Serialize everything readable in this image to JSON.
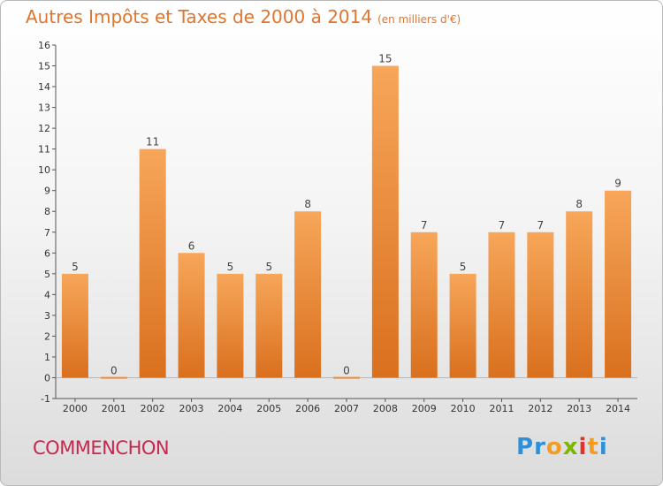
{
  "title": "Autres Impôts et Taxes de 2000 à 2014",
  "subtitle": "(en milliers d'€)",
  "commune": "COMMENCHON",
  "logo": {
    "letters": [
      "P",
      "r",
      "o",
      "x",
      "i",
      "t",
      "i"
    ],
    "colors": [
      "#2f8fd8",
      "#2f8fd8",
      "#f39c1f",
      "#7ab800",
      "#e2322a",
      "#f39c1f",
      "#2f8fd8"
    ]
  },
  "colors": {
    "bar_light": "#f7a65a",
    "bar_dark": "#d9701e",
    "title": "#e0752d",
    "commune": "#c9264e"
  },
  "chart_data": {
    "type": "bar",
    "title": "Autres Impôts et Taxes de 2000 à 2014",
    "subtitle": "(en milliers d'€)",
    "categories": [
      "2000",
      "2001",
      "2002",
      "2003",
      "2004",
      "2005",
      "2006",
      "2007",
      "2008",
      "2009",
      "2010",
      "2011",
      "2012",
      "2013",
      "2014"
    ],
    "values": [
      5,
      0,
      11,
      6,
      5,
      5,
      8,
      0,
      15,
      7,
      5,
      7,
      7,
      8,
      9
    ],
    "ylim": [
      -1,
      16
    ],
    "yticks": [
      -1,
      0,
      1,
      2,
      3,
      4,
      5,
      6,
      7,
      8,
      9,
      10,
      11,
      12,
      13,
      14,
      15,
      16
    ],
    "xlabel": "",
    "ylabel": "",
    "grid": false,
    "data_labels": true
  }
}
